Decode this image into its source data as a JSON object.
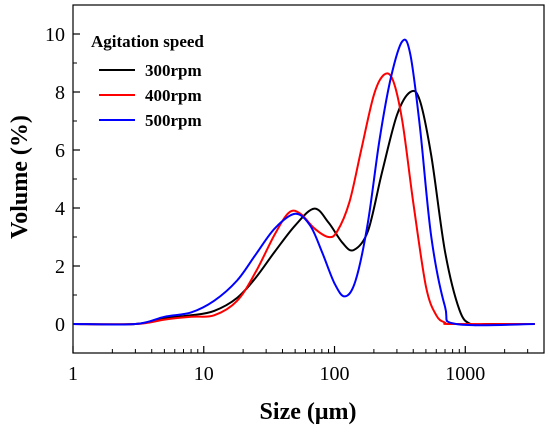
{
  "chart_data": {
    "type": "line",
    "xlabel": "Size (μm)",
    "ylabel": "Volume (%)",
    "xscale": "log",
    "xlim": [
      1,
      4000
    ],
    "ylim": [
      -1,
      11
    ],
    "x_ticks": [
      1,
      10,
      100,
      1000
    ],
    "x_tick_labels": [
      "1",
      "10",
      "100",
      "1000"
    ],
    "y_ticks": [
      0,
      2,
      4,
      6,
      8,
      10
    ],
    "y_tick_labels": [
      "0",
      "2",
      "4",
      "6",
      "8",
      "10"
    ],
    "grid": false,
    "legend": {
      "title": "Agitation speed",
      "position": "top-left"
    },
    "series": [
      {
        "name": "300rpm",
        "color": "#000000",
        "x": [
          1,
          3,
          5,
          8,
          12,
          18,
          25,
          35,
          50,
          70,
          90,
          115,
          140,
          180,
          230,
          300,
          380,
          450,
          550,
          700,
          900,
          1100,
          1500,
          3400
        ],
        "y": [
          0,
          0,
          0.2,
          0.3,
          0.45,
          0.9,
          1.6,
          2.5,
          3.4,
          3.98,
          3.5,
          2.8,
          2.55,
          3.2,
          5.2,
          7.2,
          8.0,
          7.7,
          5.8,
          2.5,
          0.5,
          0,
          0,
          0
        ]
      },
      {
        "name": "400rpm",
        "color": "#ff0000",
        "x": [
          1,
          3,
          5,
          8,
          12,
          18,
          25,
          35,
          45,
          55,
          70,
          90,
          105,
          130,
          160,
          200,
          240,
          280,
          330,
          400,
          500,
          600,
          700,
          800,
          3400
        ],
        "y": [
          0,
          0,
          0.15,
          0.25,
          0.3,
          0.8,
          1.8,
          3.1,
          3.85,
          3.8,
          3.3,
          3.0,
          3.2,
          4.2,
          6.0,
          7.9,
          8.6,
          8.4,
          7.0,
          4.2,
          1.3,
          0.3,
          0.05,
          0,
          0
        ]
      },
      {
        "name": "500rpm",
        "color": "#0000ff",
        "x": [
          1,
          3,
          5,
          8,
          12,
          18,
          25,
          35,
          50,
          65,
          80,
          100,
          120,
          145,
          180,
          220,
          270,
          330,
          380,
          450,
          550,
          700,
          850,
          3400
        ],
        "y": [
          0,
          0,
          0.25,
          0.4,
          0.8,
          1.5,
          2.4,
          3.3,
          3.8,
          3.4,
          2.5,
          1.4,
          0.95,
          1.5,
          3.5,
          6.3,
          8.5,
          9.75,
          9.3,
          6.8,
          3.0,
          0.6,
          0,
          0
        ]
      }
    ]
  }
}
